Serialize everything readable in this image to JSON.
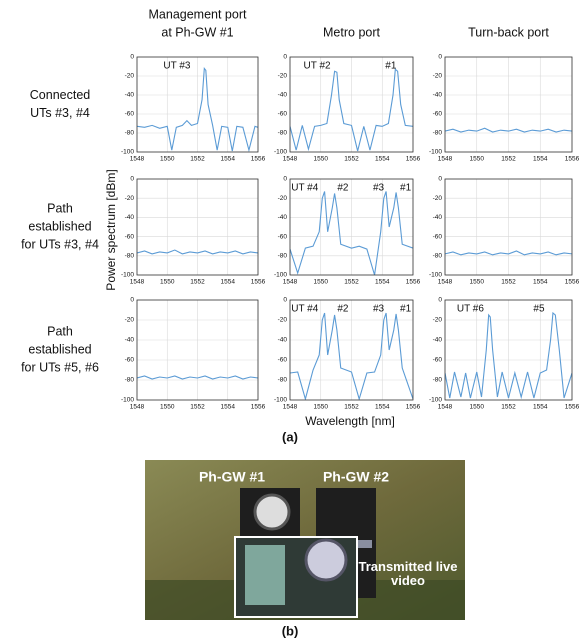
{
  "figure": {
    "column_titles": [
      [
        "Management port",
        "at Ph-GW #1"
      ],
      [
        "Metro port"
      ],
      [
        "Turn-back port"
      ]
    ],
    "row_titles": [
      [
        "Connected",
        "UTs #3, #4"
      ],
      [
        "Path",
        "established",
        "for UTs #3, #4"
      ],
      [
        "Path",
        "established",
        "for UTs #5, #6"
      ]
    ],
    "y_label": "Power spectrum [dBm]",
    "x_label": "Wavelength [nm]",
    "panel_label": "(a)"
  },
  "chart_data": [
    {
      "type": "line",
      "annotations": [
        "UT #3"
      ],
      "x": [
        1548,
        1548.5,
        1549,
        1549.5,
        1550,
        1550.3,
        1550.6,
        1551,
        1551.3,
        1551.6,
        1552,
        1552.3,
        1552.45,
        1552.55,
        1552.7,
        1553,
        1553.3,
        1553.6,
        1554,
        1554.3,
        1554.6,
        1555,
        1555.4,
        1555.8,
        1556
      ],
      "series": [
        {
          "color": "#5b9bd5",
          "values": [
            -73,
            -74,
            -72,
            -75,
            -73,
            -98,
            -74,
            -72,
            -67,
            -72,
            -70,
            -45,
            -12,
            -14,
            -50,
            -72,
            -98,
            -73,
            -74,
            -99,
            -73,
            -74,
            -98,
            -73,
            -74
          ]
        }
      ],
      "xlim": [
        1548,
        1556
      ],
      "xticks": [
        1548,
        1550,
        1552,
        1554,
        1556
      ],
      "ylim": [
        -100,
        0
      ],
      "yticks": [
        -100,
        -80,
        -60,
        -40,
        -20,
        0
      ],
      "grid": true
    },
    {
      "type": "line",
      "annotations": [
        "UT #2",
        "#1"
      ],
      "x": [
        1548,
        1548.4,
        1548.8,
        1549.2,
        1549.6,
        1550,
        1550.4,
        1550.7,
        1550.9,
        1551.05,
        1551.2,
        1551.5,
        1552,
        1552.4,
        1552.8,
        1553.2,
        1553.6,
        1554,
        1554.4,
        1554.7,
        1554.85,
        1555,
        1555.2,
        1555.5,
        1556
      ],
      "series": [
        {
          "color": "#5b9bd5",
          "values": [
            -73,
            -98,
            -72,
            -97,
            -73,
            -72,
            -70,
            -40,
            -15,
            -16,
            -45,
            -70,
            -72,
            -99,
            -73,
            -98,
            -72,
            -73,
            -70,
            -40,
            -13,
            -15,
            -50,
            -72,
            -73
          ]
        }
      ],
      "xlim": [
        1548,
        1556
      ],
      "xticks": [
        1548,
        1550,
        1552,
        1554,
        1556
      ],
      "ylim": [
        -100,
        0
      ],
      "yticks": [
        -100,
        -80,
        -60,
        -40,
        -20,
        0
      ],
      "grid": true
    },
    {
      "type": "line",
      "annotations": [],
      "x": [
        1548,
        1548.5,
        1549,
        1549.5,
        1550,
        1550.5,
        1551,
        1551.5,
        1552,
        1552.5,
        1553,
        1553.5,
        1554,
        1554.5,
        1555,
        1555.5,
        1556
      ],
      "series": [
        {
          "color": "#5b9bd5",
          "values": [
            -78,
            -76,
            -79,
            -77,
            -78,
            -75,
            -79,
            -77,
            -78,
            -76,
            -79,
            -77,
            -78,
            -76,
            -79,
            -77,
            -78
          ]
        }
      ],
      "xlim": [
        1548,
        1556
      ],
      "xticks": [
        1548,
        1550,
        1552,
        1554,
        1556
      ],
      "ylim": [
        -100,
        0
      ],
      "yticks": [
        -100,
        -80,
        -60,
        -40,
        -20,
        0
      ],
      "grid": true
    },
    {
      "type": "line",
      "annotations": [],
      "x": [
        1548,
        1548.5,
        1549,
        1549.5,
        1550,
        1550.5,
        1551,
        1551.5,
        1552,
        1552.5,
        1553,
        1553.5,
        1554,
        1554.5,
        1555,
        1555.5,
        1556
      ],
      "series": [
        {
          "color": "#5b9bd5",
          "values": [
            -77,
            -75,
            -78,
            -76,
            -77,
            -74,
            -78,
            -76,
            -77,
            -75,
            -78,
            -76,
            -77,
            -75,
            -78,
            -76,
            -77
          ]
        }
      ],
      "xlim": [
        1548,
        1556
      ],
      "xticks": [
        1548,
        1550,
        1552,
        1554,
        1556
      ],
      "ylim": [
        -100,
        0
      ],
      "yticks": [
        -100,
        -80,
        -60,
        -40,
        -20,
        0
      ],
      "grid": true
    },
    {
      "type": "line",
      "annotations": [
        "UT #4",
        "#2",
        "#3",
        "#1"
      ],
      "x": [
        1548,
        1548.5,
        1549,
        1549.5,
        1549.9,
        1550.1,
        1550.25,
        1550.45,
        1550.75,
        1550.9,
        1551.05,
        1551.3,
        1552,
        1552.5,
        1553,
        1553.5,
        1553.9,
        1554.1,
        1554.25,
        1554.45,
        1554.75,
        1554.9,
        1555.05,
        1555.3,
        1556
      ],
      "series": [
        {
          "color": "#5b9bd5",
          "values": [
            -73,
            -98,
            -72,
            -70,
            -55,
            -20,
            -13,
            -55,
            -30,
            -15,
            -30,
            -68,
            -72,
            -70,
            -73,
            -100,
            -55,
            -20,
            -13,
            -50,
            -30,
            -14,
            -30,
            -68,
            -72
          ]
        }
      ],
      "xlim": [
        1548,
        1556
      ],
      "xticks": [
        1548,
        1550,
        1552,
        1554,
        1556
      ],
      "ylim": [
        -100,
        0
      ],
      "yticks": [
        -100,
        -80,
        -60,
        -40,
        -20,
        0
      ],
      "grid": true
    },
    {
      "type": "line",
      "annotations": [],
      "x": [
        1548,
        1548.5,
        1549,
        1549.5,
        1550,
        1550.5,
        1551,
        1551.5,
        1552,
        1552.5,
        1553,
        1553.5,
        1554,
        1554.5,
        1555,
        1555.5,
        1556
      ],
      "series": [
        {
          "color": "#5b9bd5",
          "values": [
            -78,
            -76,
            -79,
            -77,
            -78,
            -76,
            -79,
            -77,
            -78,
            -75,
            -79,
            -77,
            -78,
            -76,
            -79,
            -77,
            -78
          ]
        }
      ],
      "xlim": [
        1548,
        1556
      ],
      "xticks": [
        1548,
        1550,
        1552,
        1554,
        1556
      ],
      "ylim": [
        -100,
        0
      ],
      "yticks": [
        -100,
        -80,
        -60,
        -40,
        -20,
        0
      ],
      "grid": true
    },
    {
      "type": "line",
      "annotations": [],
      "x": [
        1548,
        1548.5,
        1549,
        1549.5,
        1550,
        1550.5,
        1551,
        1551.5,
        1552,
        1552.5,
        1553,
        1553.5,
        1554,
        1554.5,
        1555,
        1555.5,
        1556
      ],
      "series": [
        {
          "color": "#5b9bd5",
          "values": [
            -78,
            -76,
            -79,
            -77,
            -78,
            -76,
            -79,
            -77,
            -78,
            -76,
            -79,
            -77,
            -78,
            -76,
            -79,
            -77,
            -78
          ]
        }
      ],
      "xlim": [
        1548,
        1556
      ],
      "xticks": [
        1548,
        1550,
        1552,
        1554,
        1556
      ],
      "ylim": [
        -100,
        0
      ],
      "yticks": [
        -100,
        -80,
        -60,
        -40,
        -20,
        0
      ],
      "grid": true
    },
    {
      "type": "line",
      "annotations": [
        "UT #4",
        "#2",
        "#3",
        "#1"
      ],
      "x": [
        1548,
        1548.5,
        1549,
        1549.5,
        1549.9,
        1550.1,
        1550.25,
        1550.45,
        1550.75,
        1550.9,
        1551.05,
        1551.3,
        1552,
        1552.5,
        1553,
        1553.5,
        1553.9,
        1554.1,
        1554.25,
        1554.45,
        1554.75,
        1554.9,
        1555.05,
        1555.3,
        1556
      ],
      "series": [
        {
          "color": "#5b9bd5",
          "values": [
            -73,
            -72,
            -99,
            -70,
            -55,
            -20,
            -13,
            -55,
            -30,
            -15,
            -30,
            -68,
            -72,
            -99,
            -73,
            -72,
            -55,
            -20,
            -13,
            -50,
            -30,
            -14,
            -30,
            -68,
            -99
          ]
        }
      ],
      "xlim": [
        1548,
        1556
      ],
      "xticks": [
        1548,
        1550,
        1552,
        1554,
        1556
      ],
      "ylim": [
        -100,
        0
      ],
      "yticks": [
        -100,
        -80,
        -60,
        -40,
        -20,
        0
      ],
      "grid": true
    },
    {
      "type": "line",
      "annotations": [
        "UT #6",
        "#5"
      ],
      "x": [
        1548,
        1548.3,
        1548.6,
        1549,
        1549.3,
        1549.6,
        1550,
        1550.3,
        1550.6,
        1550.75,
        1550.85,
        1551,
        1551.3,
        1551.6,
        1552,
        1552.4,
        1552.8,
        1553.2,
        1553.6,
        1554,
        1554.4,
        1554.65,
        1554.8,
        1554.95,
        1555.2,
        1555.5,
        1556
      ],
      "series": [
        {
          "color": "#5b9bd5",
          "values": [
            -73,
            -98,
            -72,
            -97,
            -73,
            -98,
            -72,
            -97,
            -50,
            -15,
            -17,
            -50,
            -97,
            -72,
            -98,
            -73,
            -97,
            -72,
            -98,
            -73,
            -70,
            -40,
            -13,
            -15,
            -50,
            -98,
            -73
          ]
        }
      ],
      "xlim": [
        1548,
        1556
      ],
      "xticks": [
        1548,
        1550,
        1552,
        1554,
        1556
      ],
      "ylim": [
        -100,
        0
      ],
      "yticks": [
        -100,
        -80,
        -60,
        -40,
        -20,
        0
      ],
      "grid": true
    }
  ],
  "photo": {
    "labels": [
      "Ph-GW #1",
      "Ph-GW #2",
      "Transmitted live video"
    ],
    "panel_label": "(b)"
  }
}
